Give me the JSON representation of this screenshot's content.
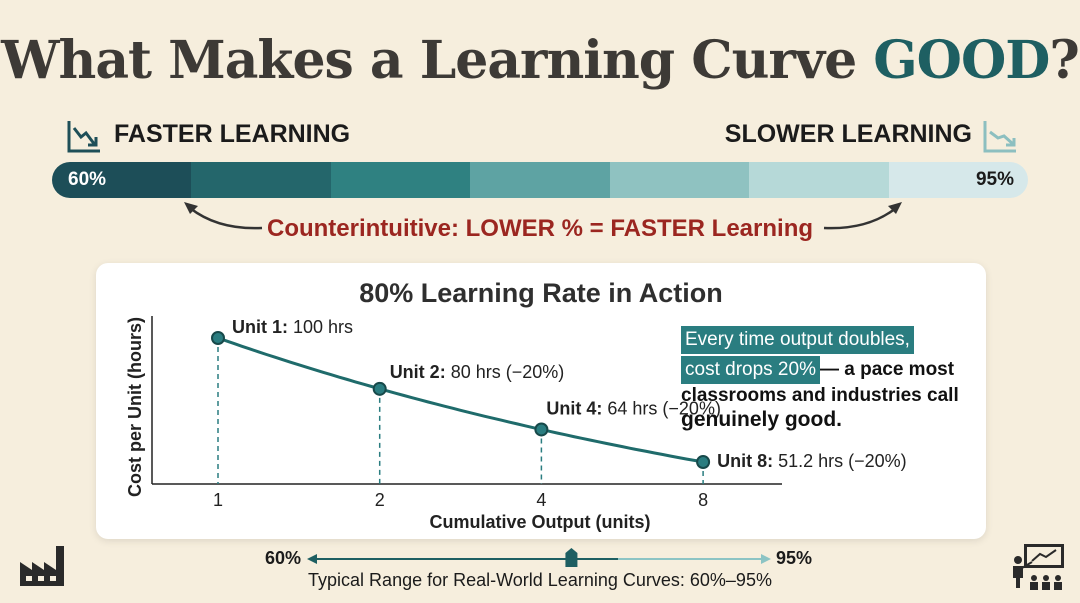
{
  "title": {
    "before": "What Makes a Learning Curve ",
    "accent": "GOOD",
    "after": "?"
  },
  "scale": {
    "left_label": "FASTER LEARNING",
    "right_label": "SLOWER LEARNING",
    "left_value": "60%",
    "right_value": "95%",
    "segment_colors": [
      "#1d4e58",
      "#24666b",
      "#2f8181",
      "#5ea3a3",
      "#8fc2c1",
      "#b6d9d8",
      "#d6e8ea"
    ]
  },
  "note": "Counterintuitive: LOWER % = FASTER Learning",
  "callout": {
    "line1": "Every time output doubles,",
    "line2_highlight": "cost drops 20%",
    "line2_rest": "— a pace most",
    "line3": "classrooms and industries call",
    "line4": "genuinely good."
  },
  "range": {
    "low": "60%",
    "high": "95%",
    "caption_bold": "Typical Range for Real-World Learning Curves:",
    "caption_value": "60%–95%",
    "marker_value": 0.8
  },
  "colors": {
    "accent": "#1e5f62",
    "curve": "#1f6b6b",
    "highlight": "#2a7d80",
    "note_red": "#9b2620"
  },
  "icons": {
    "left_trend": "trend-down-icon",
    "right_trend": "trend-down-icon",
    "corner_left": "factory-icon",
    "corner_right": "teacher-icon"
  },
  "chart_data": {
    "type": "line",
    "title": "80% Learning Rate in Action",
    "xlabel": "Cumulative Output (units)",
    "ylabel": "Cost per Unit (hours)",
    "x_ticks": [
      1,
      2,
      4,
      8
    ],
    "x_scale": "log2",
    "points": [
      {
        "x": 1,
        "y": 100,
        "label_bold": "Unit 1:",
        "label_rest": "100 hrs"
      },
      {
        "x": 2,
        "y": 80,
        "label_bold": "Unit 2:",
        "label_rest": "80 hrs (−20%)"
      },
      {
        "x": 4,
        "y": 64,
        "label_bold": "Unit 4:",
        "label_rest": "64 hrs (−20%)"
      },
      {
        "x": 8,
        "y": 51.2,
        "label_bold": "Unit 8:",
        "label_rest": "51.2 hrs (−20%)"
      }
    ],
    "learning_rate": 0.8,
    "grid": false
  }
}
